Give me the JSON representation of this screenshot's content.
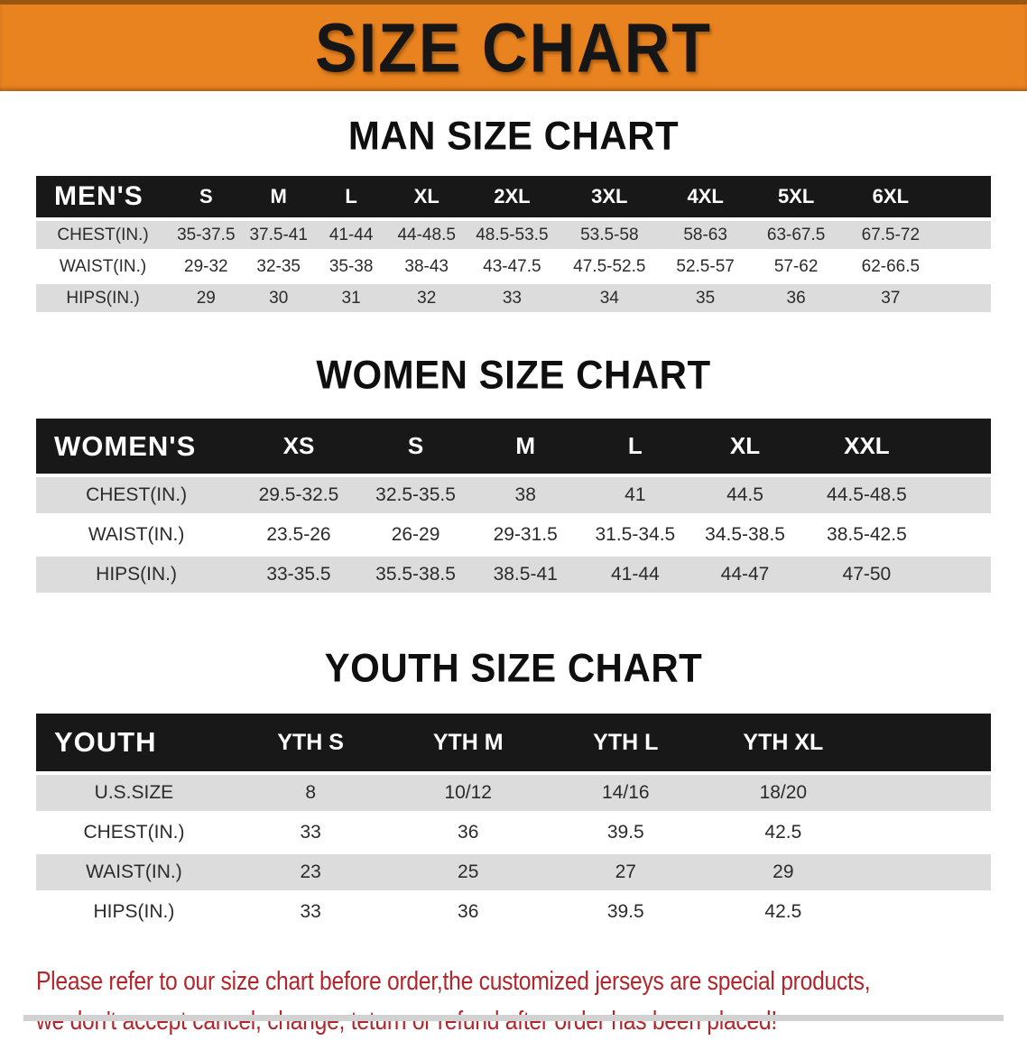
{
  "banner": {
    "title": "SIZE CHART",
    "bg_color": "#E88320",
    "title_color": "#161616"
  },
  "sections": [
    {
      "heading": "MAN SIZE CHART",
      "table": {
        "header_label": "MEN'S",
        "columns": [
          "S",
          "M",
          "L",
          "XL",
          "2XL",
          "3XL",
          "4XL",
          "5XL",
          "6XL"
        ],
        "rows": [
          {
            "label": "CHEST(IN.)",
            "values": [
              "35-37.5",
              "37.5-41",
              "41-44",
              "44-48.5",
              "48.5-53.5",
              "53.5-58",
              "58-63",
              "63-67.5",
              "67.5-72"
            ]
          },
          {
            "label": "WAIST(IN.)",
            "values": [
              "29-32",
              "32-35",
              "35-38",
              "38-43",
              "43-47.5",
              "47.5-52.5",
              "52.5-57",
              "57-62",
              "62-66.5"
            ]
          },
          {
            "label": "HIPS(IN.)",
            "values": [
              "29",
              "30",
              "31",
              "32",
              "33",
              "34",
              "35",
              "36",
              "37"
            ]
          }
        ]
      }
    },
    {
      "heading": "WOMEN SIZE CHART",
      "table": {
        "header_label": "WOMEN'S",
        "columns": [
          "XS",
          "S",
          "M",
          "L",
          "XL",
          "XXL"
        ],
        "rows": [
          {
            "label": "CHEST(IN.)",
            "values": [
              "29.5-32.5",
              "32.5-35.5",
              "38",
              "41",
              "44.5",
              "44.5-48.5"
            ]
          },
          {
            "label": "WAIST(IN.)",
            "values": [
              "23.5-26",
              "26-29",
              "29-31.5",
              "31.5-34.5",
              "34.5-38.5",
              "38.5-42.5"
            ]
          },
          {
            "label": "HIPS(IN.)",
            "values": [
              "33-35.5",
              "35.5-38.5",
              "38.5-41",
              "41-44",
              "44-47",
              "47-50"
            ]
          }
        ]
      }
    },
    {
      "heading": "YOUTH SIZE CHART",
      "table": {
        "header_label": "YOUTH",
        "columns": [
          "YTH S",
          "YTH M",
          "YTH L",
          "YTH XL"
        ],
        "rows": [
          {
            "label": "U.S.SIZE",
            "values": [
              "8",
              "10/12",
              "14/16",
              "18/20"
            ]
          },
          {
            "label": "CHEST(IN.)",
            "values": [
              "33",
              "36",
              "39.5",
              "42.5"
            ]
          },
          {
            "label": "WAIST(IN.)",
            "values": [
              "23",
              "25",
              "27",
              "29"
            ]
          },
          {
            "label": "HIPS(IN.)",
            "values": [
              "33",
              "36",
              "39.5",
              "42.5"
            ]
          }
        ]
      }
    }
  ],
  "footer": {
    "line1": "Please refer to our size chart before order,the customized jerseys are special products,",
    "line2": "we don't accept cancel, change, teturn or refund after order has been placed!",
    "text_color": "#B2262B"
  }
}
